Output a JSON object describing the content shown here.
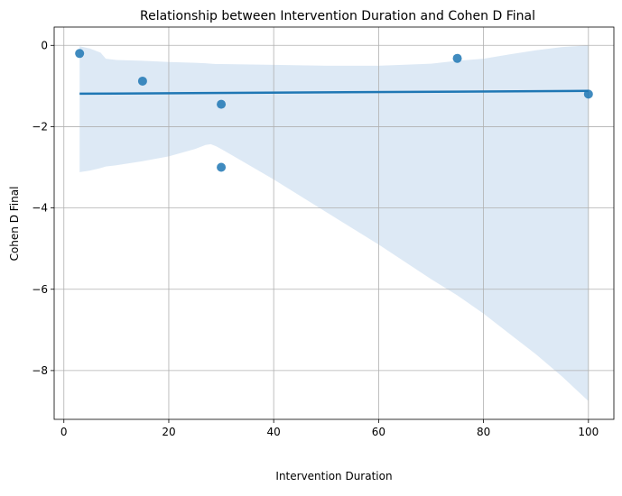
{
  "chart_data": {
    "type": "scatter",
    "title": "Relationship between Intervention Duration and Cohen D Final",
    "xlabel": "Intervention Duration",
    "ylabel": "Cohen D Final",
    "xlim": [
      -1.85,
      104.85
    ],
    "ylim": [
      -9.2,
      0.45
    ],
    "xticks": [
      0,
      20,
      40,
      60,
      80,
      100
    ],
    "yticks": [
      0,
      -2,
      -4,
      -6,
      -8
    ],
    "xtick_labels": [
      "0",
      "20",
      "40",
      "60",
      "80",
      "100"
    ],
    "ytick_labels": [
      "0",
      "−2",
      "−4",
      "−6",
      "−8"
    ],
    "grid": true,
    "colors": {
      "points": "#1f77b4",
      "regression_line": "#1f77b4",
      "confidence_band": "#c6dbef"
    },
    "points": [
      {
        "x": 3,
        "y": -0.2
      },
      {
        "x": 15,
        "y": -0.88
      },
      {
        "x": 30,
        "y": -1.45
      },
      {
        "x": 30,
        "y": -3.0
      },
      {
        "x": 75,
        "y": -0.32
      },
      {
        "x": 100,
        "y": -1.2
      }
    ],
    "regression_line": {
      "x": [
        3,
        100
      ],
      "y": [
        -1.19,
        -1.12
      ]
    },
    "confidence_band": {
      "x": [
        3,
        5,
        7,
        8,
        10,
        15,
        20,
        25,
        27,
        28,
        29,
        30,
        40,
        50,
        60,
        70,
        75,
        80,
        85,
        90,
        95,
        100
      ],
      "upper": [
        -0.02,
        -0.08,
        -0.18,
        -0.33,
        -0.36,
        -0.38,
        -0.41,
        -0.43,
        -0.44,
        -0.45,
        -0.46,
        -0.46,
        -0.48,
        -0.5,
        -0.5,
        -0.45,
        -0.38,
        -0.33,
        -0.22,
        -0.12,
        -0.04,
        0.0
      ],
      "lower": [
        -3.12,
        -3.08,
        -3.02,
        -2.98,
        -2.95,
        -2.85,
        -2.73,
        -2.55,
        -2.45,
        -2.43,
        -2.48,
        -2.55,
        -3.3,
        -4.1,
        -4.9,
        -5.75,
        -6.15,
        -6.6,
        -7.1,
        -7.6,
        -8.15,
        -8.75
      ]
    }
  }
}
